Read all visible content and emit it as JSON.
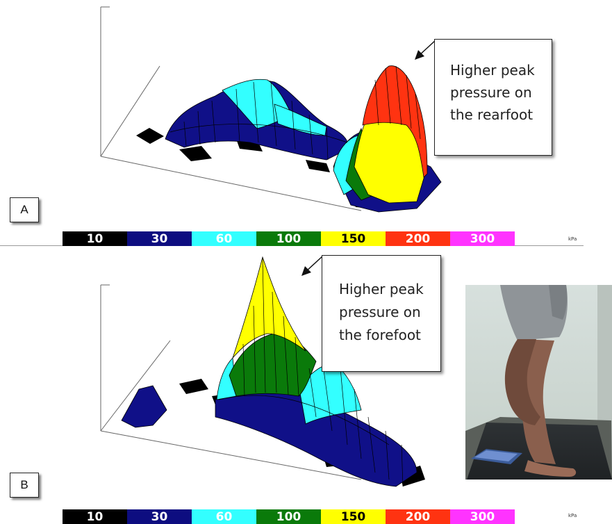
{
  "panel_a": {
    "label": "A",
    "callout_lines": [
      "Higher peak",
      "pressure on",
      "the rearfoot"
    ]
  },
  "panel_b": {
    "label": "B",
    "callout_lines": [
      "Higher peak",
      "pressure on",
      "the forefoot"
    ]
  },
  "scale": {
    "unit": "kPa",
    "ticks": [
      {
        "value": "10",
        "color": "#000000",
        "text_color": "#ffffff"
      },
      {
        "value": "30",
        "color": "#0d0d80",
        "text_color": "#ffffff"
      },
      {
        "value": "60",
        "color": "#33ffff",
        "text_color": "#ffffff"
      },
      {
        "value": "100",
        "color": "#0a7a0a",
        "text_color": "#ffffff"
      },
      {
        "value": "150",
        "color": "#ffff00",
        "text_color": "#000000"
      },
      {
        "value": "200",
        "color": "#ff3311",
        "text_color": "#ffffff"
      },
      {
        "value": "300",
        "color": "#ff33ff",
        "text_color": "#ffffff"
      }
    ]
  }
}
